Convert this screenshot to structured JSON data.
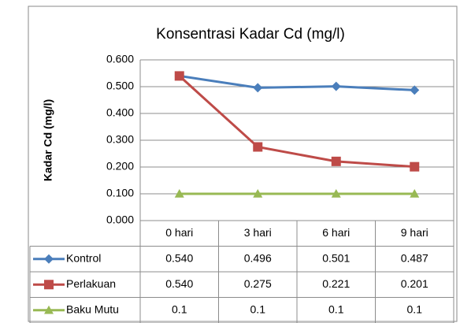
{
  "chart_data": {
    "type": "line",
    "title": "Konsentrasi Kadar Cd (mg/l)",
    "y_label": "Kadar Cd (mg/l)",
    "categories": [
      "0 hari",
      "3 hari",
      "6 hari",
      "9 hari"
    ],
    "series": [
      {
        "name": "Kontrol",
        "color": "#4a7ebb",
        "marker": "diamond",
        "values": [
          0.54,
          0.496,
          0.501,
          0.487
        ],
        "value_labels": [
          "0.540",
          "0.496",
          "0.501",
          "0.487"
        ]
      },
      {
        "name": "Perlakuan",
        "color": "#be4b48",
        "marker": "square",
        "values": [
          0.54,
          0.275,
          0.221,
          0.201
        ],
        "value_labels": [
          "0.540",
          "0.275",
          "0.221",
          "0.201"
        ]
      },
      {
        "name": "Baku Mutu",
        "color": "#98b954",
        "marker": "triangle",
        "values": [
          0.1,
          0.1,
          0.1,
          0.1
        ],
        "value_labels": [
          "0.1",
          "0.1",
          "0.1",
          "0.1"
        ]
      }
    ],
    "ylim": [
      0,
      0.6
    ],
    "yticks": [
      {
        "value": 0,
        "label": "0.000"
      },
      {
        "value": 0.1,
        "label": "0.100"
      },
      {
        "value": 0.2,
        "label": "0.200"
      },
      {
        "value": 0.3,
        "label": "0.300"
      },
      {
        "value": 0.4,
        "label": "0.400"
      },
      {
        "value": 0.5,
        "label": "0.500"
      },
      {
        "value": 0.6,
        "label": "0.600"
      }
    ],
    "grid": true
  }
}
